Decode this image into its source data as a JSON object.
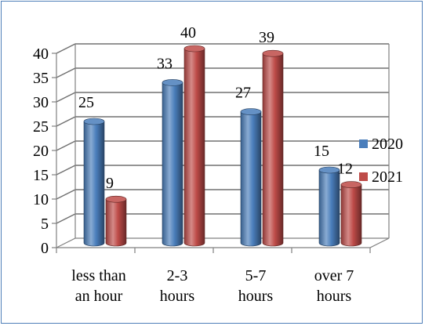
{
  "chart_data": {
    "type": "bar",
    "categories": [
      [
        "less than",
        "an hour"
      ],
      [
        "2-3",
        "hours"
      ],
      [
        "5-7",
        "hours"
      ],
      [
        "over 7",
        "hours"
      ]
    ],
    "series": [
      {
        "name": "2020",
        "values": [
          25,
          33,
          27,
          15
        ],
        "color": "#4a7ebb"
      },
      {
        "name": "2021",
        "values": [
          9,
          40,
          39,
          12
        ],
        "color": "#be4b48"
      }
    ],
    "ylim": [
      0,
      40
    ],
    "yticks": [
      0,
      5,
      10,
      15,
      20,
      25,
      30,
      35,
      40
    ],
    "grid": true,
    "legend": "right",
    "style": "3d-cylinder"
  }
}
